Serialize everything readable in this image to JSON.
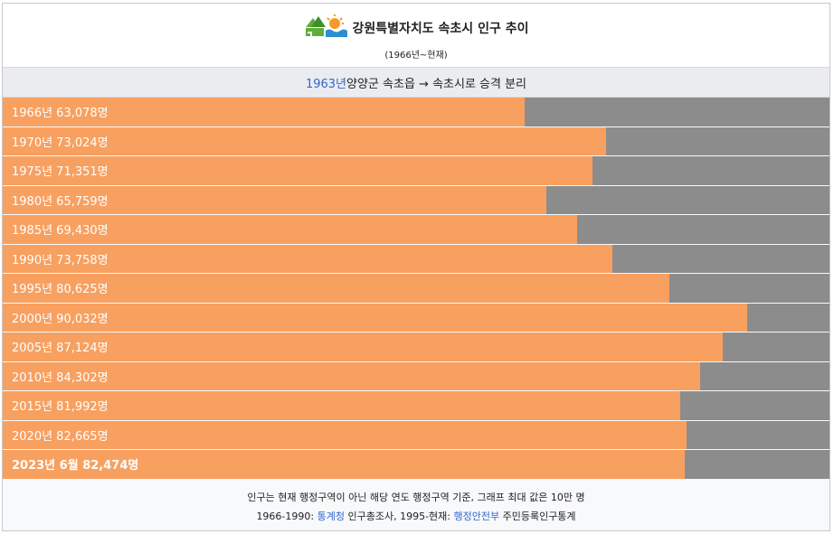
{
  "header": {
    "title": "강원특별자치도 속초시 인구 추이",
    "subtitle": "(1966년~현재)",
    "logo_icon": "gangwon-emblem-icon"
  },
  "note": {
    "year_link": "1963년",
    "text": " 양양군 속초읍 → 속초시로 승격 분리"
  },
  "colors": {
    "bar_fill": "#f8a060",
    "bar_remainder": "#8c8c8c",
    "link": "#3366cc"
  },
  "chart_data": {
    "type": "bar",
    "orientation": "horizontal",
    "title": "강원특별자치도 속초시 인구 추이",
    "subtitle": "(1966년~현재)",
    "xlim": [
      0,
      100000
    ],
    "categories": [
      "1966년",
      "1970년",
      "1975년",
      "1980년",
      "1985년",
      "1990년",
      "1995년",
      "2000년",
      "2005년",
      "2010년",
      "2015년",
      "2020년",
      "2023년 6월"
    ],
    "values": [
      63078,
      73024,
      71351,
      65759,
      69430,
      73758,
      80625,
      90032,
      87124,
      84302,
      81992,
      82665,
      82474
    ],
    "labels": [
      "1966년 63,078명",
      "1970년 73,024명",
      "1975년 71,351명",
      "1980년 65,759명",
      "1985년 69,430명",
      "1990년 73,758명",
      "1995년 80,625명",
      "2000년 90,032명",
      "2005년 87,124명",
      "2010년 84,302명",
      "2015년 81,992명",
      "2020년 82,665명",
      "2023년 6월 82,474명"
    ],
    "highlight_last": true
  },
  "footer": {
    "line1": "인구는 현재 행정구역이 아닌 해당 연도 행정구역 기준, 그래프 최대 값은 10만 명",
    "line2_prefix": "1966-1990: ",
    "line2_link1": "통계청",
    "line2_mid": " 인구총조사, 1995-현재: ",
    "line2_link2": "행정안전부",
    "line2_suffix": " 주민등록인구통계"
  }
}
